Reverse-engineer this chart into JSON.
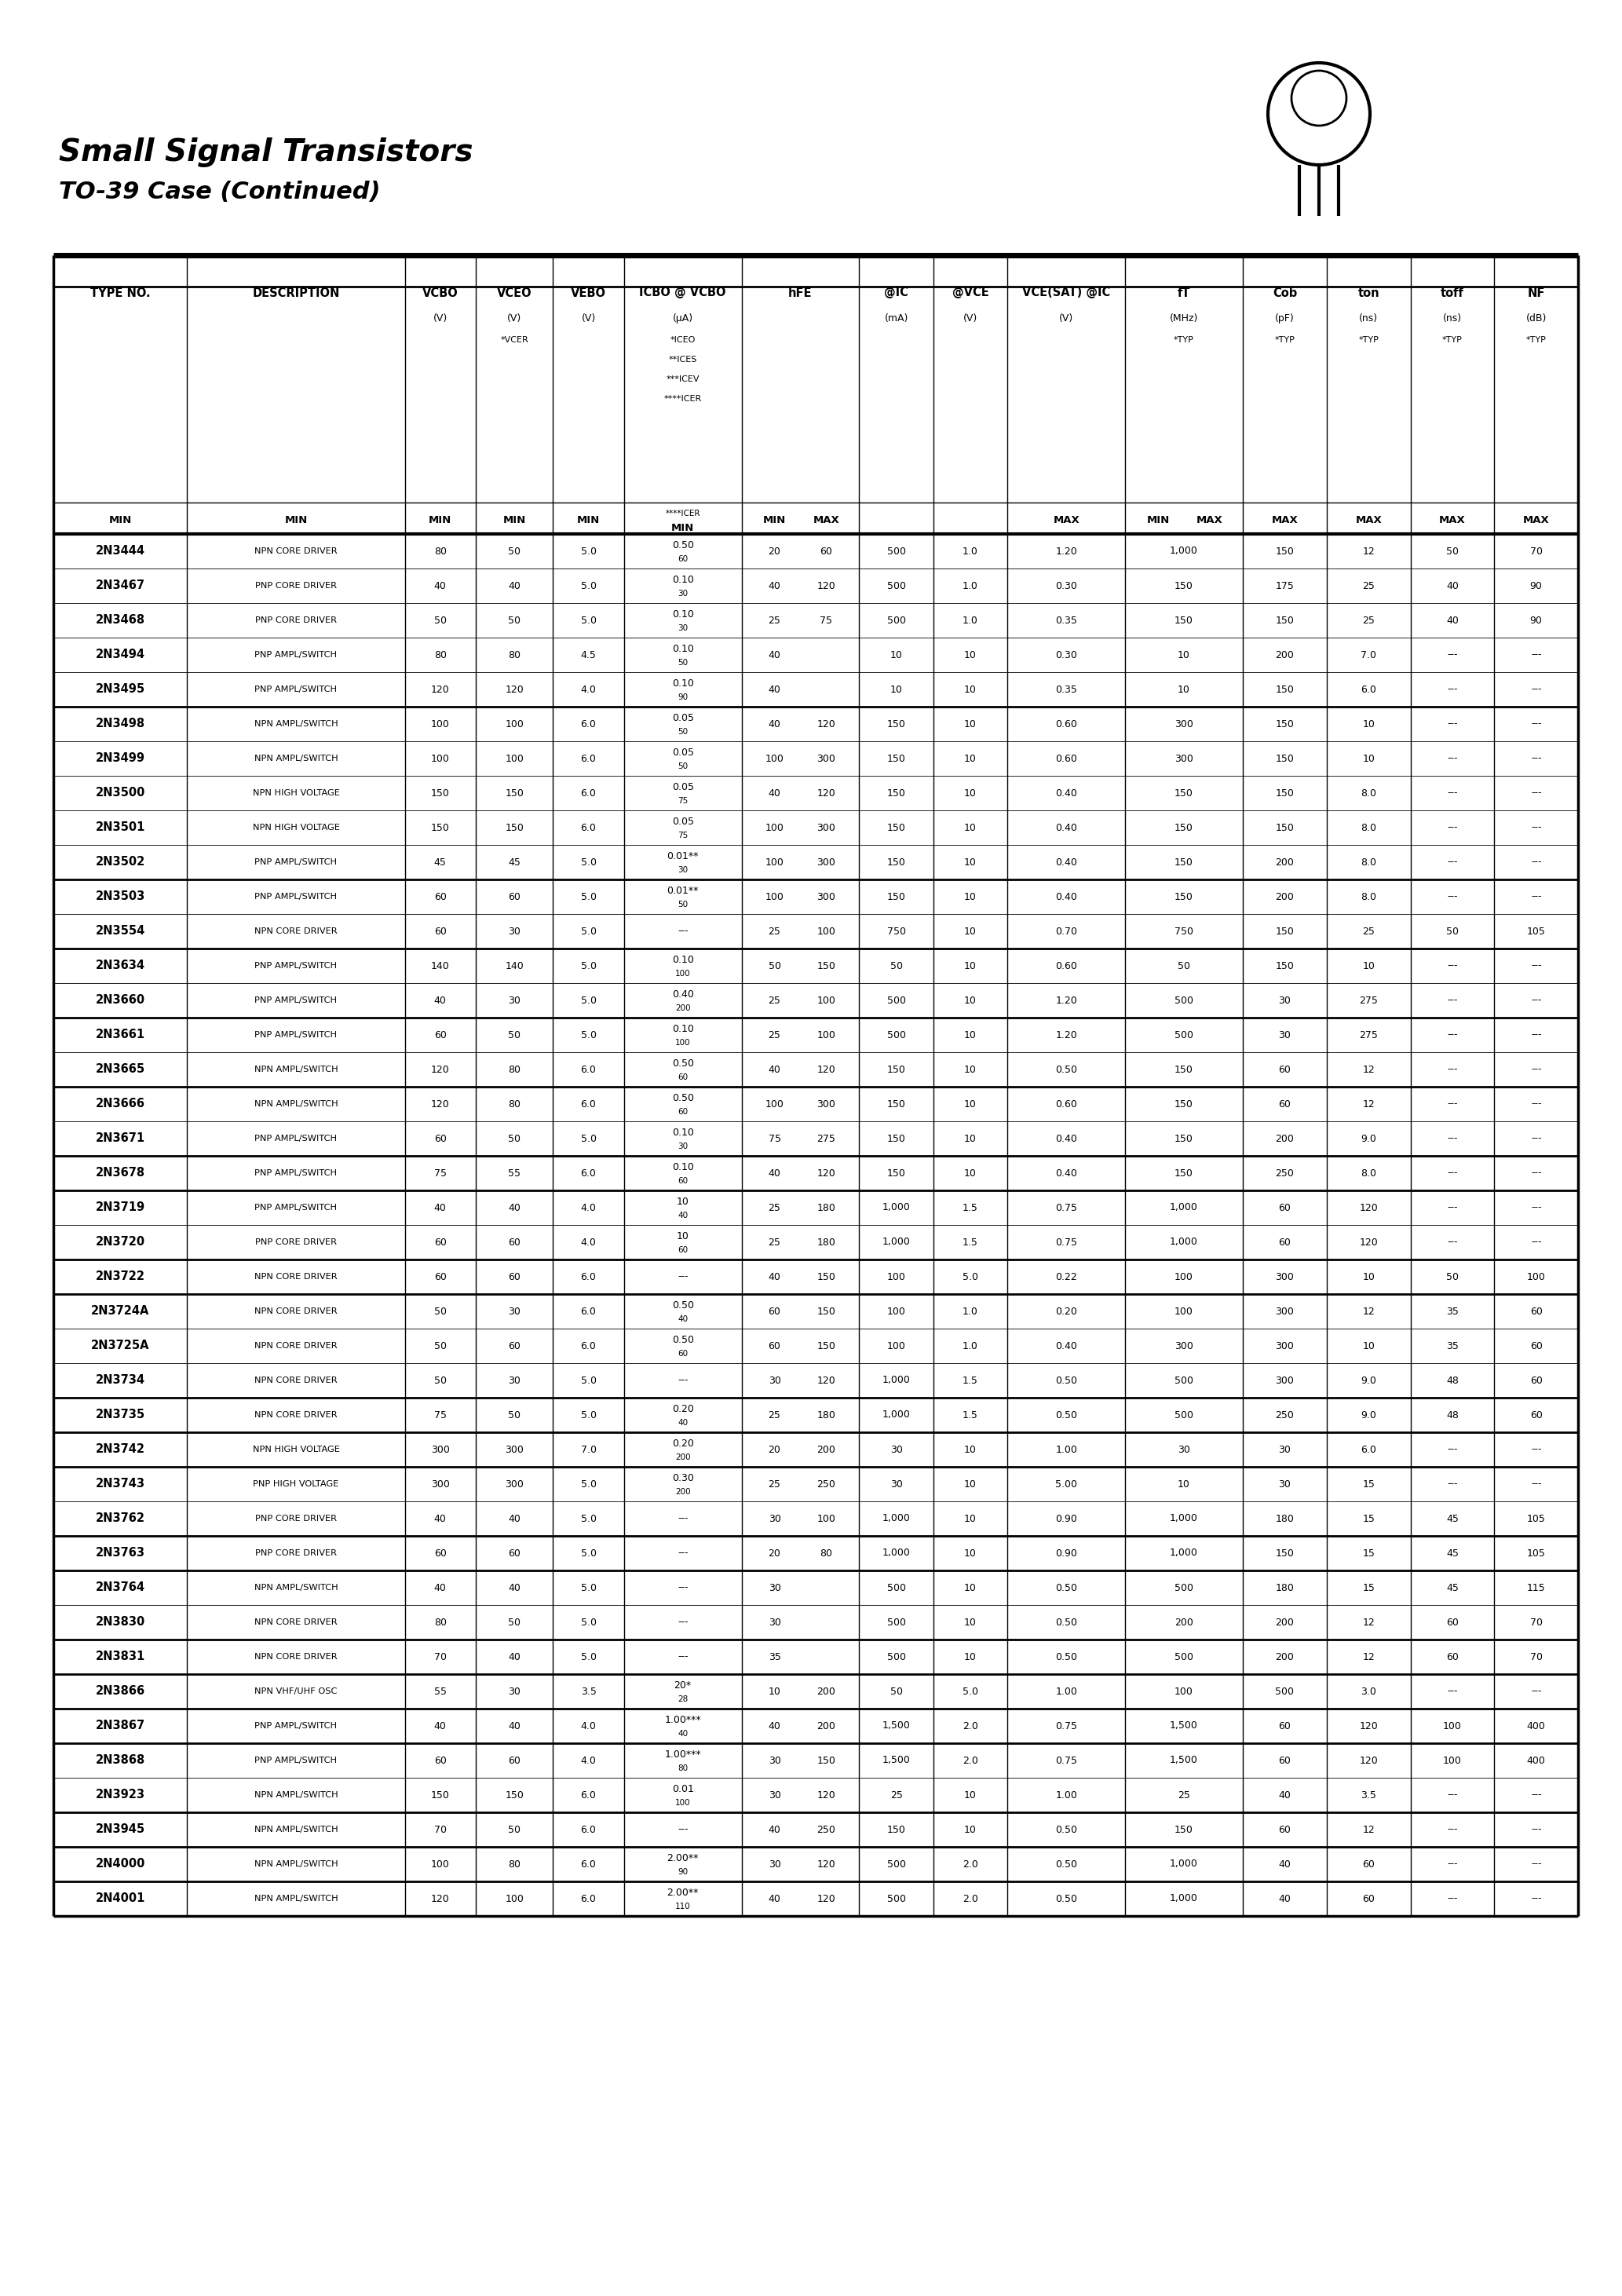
{
  "title": "Small Signal Transistors",
  "subtitle": "TO-39 Case (Continued)",
  "rows": [
    [
      "2N3444",
      "NPN CORE DRIVER",
      "80",
      "50",
      "5.0",
      "0.50",
      "60",
      "20",
      "60",
      "500",
      "1.0",
      "1.20",
      "1,000",
      "150",
      "12",
      "50",
      "70",
      "---"
    ],
    [
      "2N3467",
      "PNP CORE DRIVER",
      "40",
      "40",
      "5.0",
      "0.10",
      "30",
      "40",
      "120",
      "500",
      "1.0",
      "0.30",
      "150",
      "175",
      "25",
      "40",
      "90",
      "---"
    ],
    [
      "2N3468",
      "PNP CORE DRIVER",
      "50",
      "50",
      "5.0",
      "0.10",
      "30",
      "25",
      "75",
      "500",
      "1.0",
      "0.35",
      "150",
      "150",
      "25",
      "40",
      "90",
      "---"
    ],
    [
      "2N3494",
      "PNP AMPL/SWITCH",
      "80",
      "80",
      "4.5",
      "0.10",
      "50",
      "40",
      "---",
      "10",
      "10",
      "0.30",
      "10",
      "200",
      "7.0",
      "---",
      "---",
      "---"
    ],
    [
      "2N3495",
      "PNP AMPL/SWITCH",
      "120",
      "120",
      "4.0",
      "0.10",
      "90",
      "40",
      "---",
      "10",
      "10",
      "0.35",
      "10",
      "150",
      "6.0",
      "---",
      "---",
      "---"
    ],
    [
      "2N3498",
      "NPN AMPL/SWITCH",
      "100",
      "100",
      "6.0",
      "0.05",
      "50",
      "40",
      "120",
      "150",
      "10",
      "0.60",
      "300",
      "150",
      "10",
      "---",
      "---",
      "---"
    ],
    [
      "2N3499",
      "NPN AMPL/SWITCH",
      "100",
      "100",
      "6.0",
      "0.05",
      "50",
      "100",
      "300",
      "150",
      "10",
      "0.60",
      "300",
      "150",
      "10",
      "---",
      "---",
      "---"
    ],
    [
      "2N3500",
      "NPN HIGH VOLTAGE",
      "150",
      "150",
      "6.0",
      "0.05",
      "75",
      "40",
      "120",
      "150",
      "10",
      "0.40",
      "150",
      "150",
      "8.0",
      "---",
      "---",
      "---"
    ],
    [
      "2N3501",
      "NPN HIGH VOLTAGE",
      "150",
      "150",
      "6.0",
      "0.05",
      "75",
      "100",
      "300",
      "150",
      "10",
      "0.40",
      "150",
      "150",
      "8.0",
      "---",
      "---",
      "---"
    ],
    [
      "2N3502",
      "PNP AMPL/SWITCH",
      "45",
      "45",
      "5.0",
      "0.01**",
      "30",
      "100",
      "300",
      "150",
      "10",
      "0.40",
      "150",
      "200",
      "8.0",
      "---",
      "---",
      "---"
    ],
    [
      "2N3503",
      "PNP AMPL/SWITCH",
      "60",
      "60",
      "5.0",
      "0.01**",
      "50",
      "100",
      "300",
      "150",
      "10",
      "0.40",
      "150",
      "200",
      "8.0",
      "---",
      "---",
      "---"
    ],
    [
      "2N3554",
      "NPN CORE DRIVER",
      "60",
      "30",
      "5.0",
      "---",
      "---",
      "25",
      "100",
      "750",
      "10",
      "0.70",
      "750",
      "150",
      "25",
      "50",
      "105",
      "---"
    ],
    [
      "2N3634",
      "PNP AMPL/SWITCH",
      "140",
      "140",
      "5.0",
      "0.10",
      "100",
      "50",
      "150",
      "50",
      "10",
      "0.60",
      "50",
      "150",
      "10",
      "---",
      "---",
      "---"
    ],
    [
      "2N3660",
      "PNP AMPL/SWITCH",
      "40",
      "30",
      "5.0",
      "0.40",
      "200",
      "25",
      "100",
      "500",
      "10",
      "1.20",
      "500",
      "30",
      "275",
      "---",
      "---",
      "---"
    ],
    [
      "2N3661",
      "PNP AMPL/SWITCH",
      "60",
      "50",
      "5.0",
      "0.10",
      "100",
      "25",
      "100",
      "500",
      "10",
      "1.20",
      "500",
      "30",
      "275",
      "---",
      "---",
      "---"
    ],
    [
      "2N3665",
      "NPN AMPL/SWITCH",
      "120",
      "80",
      "6.0",
      "0.50",
      "60",
      "40",
      "120",
      "150",
      "10",
      "0.50",
      "150",
      "60",
      "12",
      "---",
      "---",
      "---"
    ],
    [
      "2N3666",
      "NPN AMPL/SWITCH",
      "120",
      "80",
      "6.0",
      "0.50",
      "60",
      "100",
      "300",
      "150",
      "10",
      "0.60",
      "150",
      "60",
      "12",
      "---",
      "---",
      "---"
    ],
    [
      "2N3671",
      "PNP AMPL/SWITCH",
      "60",
      "50",
      "5.0",
      "0.10",
      "30",
      "75",
      "275",
      "150",
      "10",
      "0.40",
      "150",
      "200",
      "9.0",
      "---",
      "---",
      "---"
    ],
    [
      "2N3678",
      "PNP AMPL/SWITCH",
      "75",
      "55",
      "6.0",
      "0.10",
      "60",
      "40",
      "120",
      "150",
      "10",
      "0.40",
      "150",
      "250",
      "8.0",
      "---",
      "---",
      "---"
    ],
    [
      "2N3719",
      "PNP AMPL/SWITCH",
      "40",
      "40",
      "4.0",
      "10",
      "40",
      "25",
      "180",
      "1,000",
      "1.5",
      "0.75",
      "1,000",
      "60",
      "120",
      "---",
      "---",
      "---"
    ],
    [
      "2N3720",
      "PNP CORE DRIVER",
      "60",
      "60",
      "4.0",
      "10",
      "60",
      "25",
      "180",
      "1,000",
      "1.5",
      "0.75",
      "1,000",
      "60",
      "120",
      "---",
      "---",
      "---"
    ],
    [
      "2N3722",
      "NPN CORE DRIVER",
      "60",
      "60",
      "6.0",
      "---",
      "---",
      "40",
      "150",
      "100",
      "5.0",
      "0.22",
      "100",
      "300",
      "10",
      "50",
      "100",
      "---"
    ],
    [
      "2N3724A",
      "NPN CORE DRIVER",
      "50",
      "30",
      "6.0",
      "0.50",
      "40",
      "60",
      "150",
      "100",
      "1.0",
      "0.20",
      "100",
      "300",
      "12",
      "35",
      "60",
      "---"
    ],
    [
      "2N3725A",
      "NPN CORE DRIVER",
      "50",
      "60",
      "6.0",
      "0.50",
      "60",
      "60",
      "150",
      "100",
      "1.0",
      "0.40",
      "300",
      "300",
      "10",
      "35",
      "60",
      "---"
    ],
    [
      "2N3734",
      "NPN CORE DRIVER",
      "50",
      "30",
      "5.0",
      "---",
      "---",
      "30",
      "120",
      "1,000",
      "1.5",
      "0.50",
      "500",
      "300",
      "9.0",
      "48",
      "60",
      "---"
    ],
    [
      "2N3735",
      "NPN CORE DRIVER",
      "75",
      "50",
      "5.0",
      "0.20",
      "40",
      "25",
      "180",
      "1,000",
      "1.5",
      "0.50",
      "500",
      "250",
      "9.0",
      "48",
      "60",
      "---"
    ],
    [
      "2N3742",
      "NPN HIGH VOLTAGE",
      "300",
      "300",
      "7.0",
      "0.20",
      "200",
      "20",
      "200",
      "30",
      "10",
      "1.00",
      "30",
      "30",
      "6.0",
      "---",
      "---",
      "---"
    ],
    [
      "2N3743",
      "PNP HIGH VOLTAGE",
      "300",
      "300",
      "5.0",
      "0.30",
      "200",
      "25",
      "250",
      "30",
      "10",
      "5.00",
      "10",
      "30",
      "15",
      "---",
      "---",
      "---"
    ],
    [
      "2N3762",
      "PNP CORE DRIVER",
      "40",
      "40",
      "5.0",
      "---",
      "---",
      "30",
      "100",
      "1,000",
      "10",
      "0.90",
      "1,000",
      "180",
      "15",
      "45",
      "105",
      "---"
    ],
    [
      "2N3763",
      "PNP CORE DRIVER",
      "60",
      "60",
      "5.0",
      "---",
      "---",
      "20",
      "80",
      "1,000",
      "10",
      "0.90",
      "1,000",
      "150",
      "15",
      "45",
      "105",
      "---"
    ],
    [
      "2N3764",
      "NPN AMPL/SWITCH",
      "40",
      "40",
      "5.0",
      "---",
      "---",
      "30",
      "---",
      "500",
      "10",
      "0.50",
      "500",
      "180",
      "15",
      "45",
      "115",
      "---"
    ],
    [
      "2N3830",
      "NPN CORE DRIVER",
      "80",
      "50",
      "5.0",
      "---",
      "---",
      "30",
      "---",
      "500",
      "10",
      "0.50",
      "200",
      "200",
      "12",
      "60",
      "70",
      "---"
    ],
    [
      "2N3831",
      "NPN CORE DRIVER",
      "70",
      "40",
      "5.0",
      "---",
      "---",
      "35",
      "---",
      "500",
      "10",
      "0.50",
      "500",
      "200",
      "12",
      "60",
      "70",
      "---"
    ],
    [
      "2N3866",
      "NPN VHF/UHF OSC",
      "55",
      "30",
      "3.5",
      "20*",
      "28",
      "10",
      "200",
      "50",
      "5.0",
      "1.00",
      "100",
      "500",
      "3.0",
      "---",
      "---",
      "---"
    ],
    [
      "2N3867",
      "PNP AMPL/SWITCH",
      "40",
      "40",
      "4.0",
      "1.00***",
      "40",
      "40",
      "200",
      "1,500",
      "2.0",
      "0.75",
      "1,500",
      "60",
      "120",
      "100",
      "400",
      "---"
    ],
    [
      "2N3868",
      "PNP AMPL/SWITCH",
      "60",
      "60",
      "4.0",
      "1.00***",
      "80",
      "30",
      "150",
      "1,500",
      "2.0",
      "0.75",
      "1,500",
      "60",
      "120",
      "100",
      "400",
      "---"
    ],
    [
      "2N3923",
      "NPN AMPL/SWITCH",
      "150",
      "150",
      "6.0",
      "0.01",
      "100",
      "30",
      "120",
      "25",
      "10",
      "1.00",
      "25",
      "40",
      "3.5",
      "---",
      "---",
      "---"
    ],
    [
      "2N3945",
      "NPN AMPL/SWITCH",
      "70",
      "50",
      "6.0",
      "---",
      "---",
      "40",
      "250",
      "150",
      "10",
      "0.50",
      "150",
      "60",
      "12",
      "---",
      "---",
      "---"
    ],
    [
      "2N4000",
      "NPN AMPL/SWITCH",
      "100",
      "80",
      "6.0",
      "2.00**",
      "90",
      "30",
      "120",
      "500",
      "2.0",
      "0.50",
      "1,000",
      "40",
      "60",
      "---",
      "---",
      "---"
    ],
    [
      "2N4001",
      "NPN AMPL/SWITCH",
      "120",
      "100",
      "6.0",
      "2.00**",
      "110",
      "40",
      "120",
      "500",
      "2.0",
      "0.50",
      "1,000",
      "40",
      "60",
      "---",
      "---",
      "---"
    ]
  ],
  "heavy_after": [
    4,
    9,
    11,
    13,
    15,
    17,
    18,
    20,
    21,
    24,
    25,
    26,
    28,
    29,
    31,
    32,
    33,
    34,
    36,
    37,
    38
  ]
}
